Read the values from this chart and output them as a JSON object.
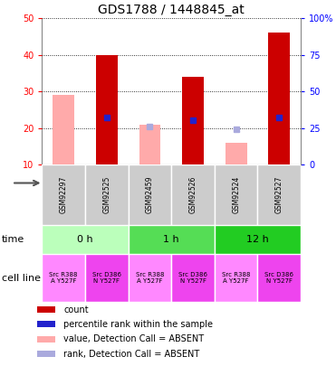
{
  "title": "GDS1788 / 1448845_at",
  "samples": [
    "GSM92297",
    "GSM92525",
    "GSM92459",
    "GSM92526",
    "GSM92524",
    "GSM92527"
  ],
  "count_values": [
    null,
    40,
    null,
    34,
    null,
    46
  ],
  "count_absent": [
    29,
    null,
    21,
    null,
    16,
    null
  ],
  "percentile_rank": [
    null,
    32,
    null,
    30.5,
    null,
    32
  ],
  "rank_absent": [
    null,
    null,
    26,
    null,
    24,
    null
  ],
  "ylim_left": [
    10,
    50
  ],
  "ylim_right": [
    0,
    100
  ],
  "yticks_left": [
    10,
    20,
    30,
    40,
    50
  ],
  "yticks_right": [
    0,
    25,
    50,
    75,
    100
  ],
  "ytick_right_labels": [
    "0",
    "25",
    "50",
    "75",
    "100%"
  ],
  "time_groups": [
    {
      "label": "0 h",
      "cols": [
        0,
        1
      ],
      "color": "#bbffbb"
    },
    {
      "label": "1 h",
      "cols": [
        2,
        3
      ],
      "color": "#55dd55"
    },
    {
      "label": "12 h",
      "cols": [
        4,
        5
      ],
      "color": "#22cc22"
    }
  ],
  "cell_line_colors": [
    "#ff88ff",
    "#ee44ee",
    "#ff88ff",
    "#ee44ee",
    "#ff88ff",
    "#ee44ee"
  ],
  "cell_line_labels": [
    "Src R388\nA Y527F",
    "Src D386\nN Y527F",
    "Src R388\nA Y527F",
    "Src D386\nN Y527F",
    "Src R388\nA Y527F",
    "Src D386\nN Y527F"
  ],
  "count_color": "#cc0000",
  "count_absent_color": "#ffaaaa",
  "rank_color": "#2222cc",
  "rank_absent_color": "#aaaadd",
  "sample_bg_color": "#cccccc",
  "n_samples": 6,
  "bar_width": 0.5,
  "legend_items": [
    {
      "color": "#cc0000",
      "label": "count"
    },
    {
      "color": "#2222cc",
      "label": "percentile rank within the sample"
    },
    {
      "color": "#ffaaaa",
      "label": "value, Detection Call = ABSENT"
    },
    {
      "color": "#aaaadd",
      "label": "rank, Detection Call = ABSENT"
    }
  ]
}
